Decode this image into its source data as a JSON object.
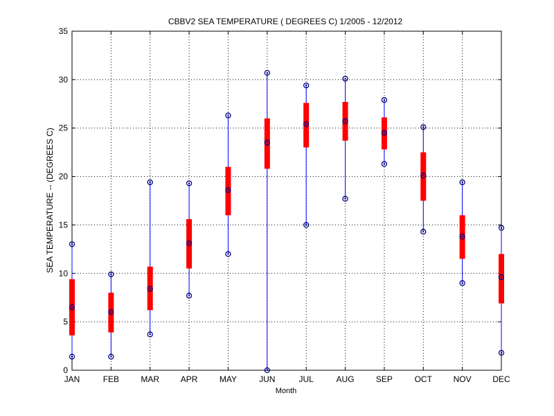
{
  "chart_data": {
    "type": "box",
    "title": "CBBV2  SEA TEMPERATURE ( DEGREES C) 1/2005 - 12/2012",
    "xlabel": "Month",
    "ylabel": "SEA TEMPERATURE -- (DEGREES C)",
    "ylim": [
      0,
      35
    ],
    "yticks": [
      0,
      5,
      10,
      15,
      20,
      25,
      30,
      35
    ],
    "grid": true,
    "categories": [
      "JAN",
      "FEB",
      "MAR",
      "APR",
      "MAY",
      "JUN",
      "JUL",
      "AUG",
      "SEP",
      "OCT",
      "NOV",
      "DEC"
    ],
    "series": [
      {
        "min": [
          1.4,
          1.4,
          3.7,
          7.7,
          12.0,
          0.0,
          15.0,
          17.7,
          21.3,
          14.3,
          9.0,
          1.8
        ],
        "q1": [
          3.6,
          3.9,
          6.2,
          10.5,
          16.0,
          20.8,
          23.0,
          23.7,
          22.8,
          17.5,
          11.5,
          6.9
        ],
        "median": [
          6.5,
          6.0,
          8.4,
          13.1,
          18.6,
          23.5,
          25.4,
          25.7,
          24.5,
          20.1,
          13.8,
          9.6
        ],
        "q3": [
          9.4,
          8.0,
          10.7,
          15.6,
          21.0,
          26.0,
          27.6,
          27.7,
          26.1,
          22.5,
          16.0,
          12.0
        ],
        "max": [
          13.0,
          9.9,
          19.4,
          19.3,
          26.3,
          30.7,
          29.4,
          30.1,
          27.9,
          25.1,
          19.4,
          14.7
        ]
      }
    ],
    "colors": {
      "box": "#ff0000",
      "whisker": "#0000ff",
      "marker": "#000080",
      "axis": "#000000",
      "grid": "#000000"
    }
  }
}
